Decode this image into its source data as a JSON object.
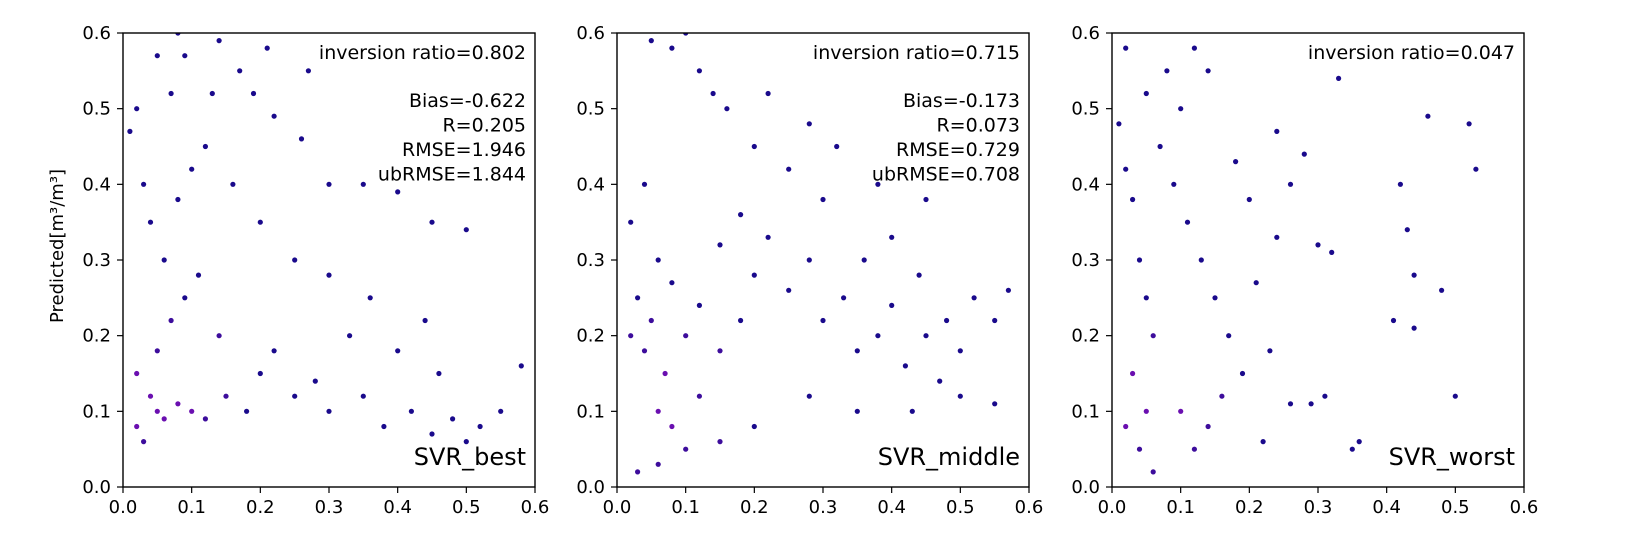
{
  "chart_data": [
    {
      "type": "scatter",
      "model": "SVR_best",
      "ylabel": "Predicted[m³/m³]",
      "xlim": [
        0,
        0.6
      ],
      "ylim": [
        0,
        0.6
      ],
      "xticks": [
        "0.0",
        "0.1",
        "0.2",
        "0.3",
        "0.4",
        "0.5",
        "0.6"
      ],
      "yticks": [
        "0.0",
        "0.1",
        "0.2",
        "0.3",
        "0.4",
        "0.5",
        "0.6"
      ],
      "stats": [
        "inversion ratio=0.802",
        "Bias=-0.622",
        "R=0.205",
        "RMSE=1.946",
        "ubRMSE=1.844"
      ],
      "points": [
        [
          0.02,
          0.08
        ],
        [
          0.03,
          0.06
        ],
        [
          0.05,
          0.1
        ],
        [
          0.04,
          0.12
        ],
        [
          0.06,
          0.09
        ],
        [
          0.08,
          0.11
        ],
        [
          0.1,
          0.1
        ],
        [
          0.12,
          0.09
        ],
        [
          0.15,
          0.12
        ],
        [
          0.18,
          0.1
        ],
        [
          0.02,
          0.15
        ],
        [
          0.05,
          0.18
        ],
        [
          0.07,
          0.22
        ],
        [
          0.09,
          0.25
        ],
        [
          0.11,
          0.28
        ],
        [
          0.06,
          0.3
        ],
        [
          0.04,
          0.35
        ],
        [
          0.08,
          0.38
        ],
        [
          0.1,
          0.42
        ],
        [
          0.14,
          0.2
        ],
        [
          0.2,
          0.15
        ],
        [
          0.22,
          0.18
        ],
        [
          0.25,
          0.12
        ],
        [
          0.28,
          0.14
        ],
        [
          0.3,
          0.1
        ],
        [
          0.35,
          0.12
        ],
        [
          0.38,
          0.08
        ],
        [
          0.42,
          0.1
        ],
        [
          0.45,
          0.07
        ],
        [
          0.48,
          0.09
        ],
        [
          0.5,
          0.06
        ],
        [
          0.52,
          0.08
        ],
        [
          0.55,
          0.1
        ],
        [
          0.58,
          0.16
        ],
        [
          0.33,
          0.2
        ],
        [
          0.36,
          0.25
        ],
        [
          0.4,
          0.18
        ],
        [
          0.44,
          0.22
        ],
        [
          0.46,
          0.15
        ],
        [
          0.3,
          0.28
        ],
        [
          0.25,
          0.3
        ],
        [
          0.2,
          0.35
        ],
        [
          0.16,
          0.4
        ],
        [
          0.12,
          0.45
        ],
        [
          0.07,
          0.52
        ],
        [
          0.09,
          0.57
        ],
        [
          0.14,
          0.59
        ],
        [
          0.22,
          0.49
        ],
        [
          0.27,
          0.55
        ],
        [
          0.21,
          0.58
        ],
        [
          0.26,
          0.46
        ],
        [
          0.3,
          0.4
        ],
        [
          0.35,
          0.4
        ],
        [
          0.4,
          0.39
        ],
        [
          0.45,
          0.35
        ],
        [
          0.5,
          0.34
        ],
        [
          0.01,
          0.47
        ],
        [
          0.02,
          0.5
        ],
        [
          0.03,
          0.4
        ],
        [
          0.05,
          0.57
        ],
        [
          0.08,
          0.6
        ],
        [
          0.13,
          0.52
        ],
        [
          0.17,
          0.55
        ],
        [
          0.19,
          0.52
        ]
      ]
    },
    {
      "type": "scatter",
      "model": "SVR_middle",
      "xlim": [
        0,
        0.6
      ],
      "ylim": [
        0,
        0.6
      ],
      "xticks": [
        "0.0",
        "0.1",
        "0.2",
        "0.3",
        "0.4",
        "0.5",
        "0.6"
      ],
      "yticks": [
        "0.0",
        "0.1",
        "0.2",
        "0.3",
        "0.4",
        "0.5",
        "0.6"
      ],
      "stats": [
        "inversion ratio=0.715",
        "Bias=-0.173",
        "R=0.073",
        "RMSE=0.729",
        "ubRMSE=0.708"
      ],
      "points": [
        [
          0.02,
          0.2
        ],
        [
          0.03,
          0.25
        ],
        [
          0.04,
          0.18
        ],
        [
          0.05,
          0.22
        ],
        [
          0.06,
          0.3
        ],
        [
          0.07,
          0.15
        ],
        [
          0.08,
          0.27
        ],
        [
          0.1,
          0.2
        ],
        [
          0.12,
          0.24
        ],
        [
          0.15,
          0.18
        ],
        [
          0.18,
          0.22
        ],
        [
          0.2,
          0.28
        ],
        [
          0.02,
          0.35
        ],
        [
          0.04,
          0.4
        ],
        [
          0.06,
          0.1
        ],
        [
          0.08,
          0.08
        ],
        [
          0.1,
          0.05
        ],
        [
          0.12,
          0.12
        ],
        [
          0.15,
          0.32
        ],
        [
          0.18,
          0.36
        ],
        [
          0.22,
          0.33
        ],
        [
          0.25,
          0.26
        ],
        [
          0.28,
          0.3
        ],
        [
          0.3,
          0.22
        ],
        [
          0.33,
          0.25
        ],
        [
          0.35,
          0.18
        ],
        [
          0.38,
          0.2
        ],
        [
          0.4,
          0.24
        ],
        [
          0.42,
          0.16
        ],
        [
          0.45,
          0.2
        ],
        [
          0.48,
          0.22
        ],
        [
          0.5,
          0.18
        ],
        [
          0.52,
          0.25
        ],
        [
          0.55,
          0.22
        ],
        [
          0.57,
          0.26
        ],
        [
          0.36,
          0.3
        ],
        [
          0.4,
          0.33
        ],
        [
          0.44,
          0.28
        ],
        [
          0.3,
          0.38
        ],
        [
          0.25,
          0.42
        ],
        [
          0.2,
          0.45
        ],
        [
          0.16,
          0.5
        ],
        [
          0.12,
          0.55
        ],
        [
          0.08,
          0.58
        ],
        [
          0.05,
          0.59
        ],
        [
          0.1,
          0.6
        ],
        [
          0.14,
          0.52
        ],
        [
          0.22,
          0.52
        ],
        [
          0.28,
          0.48
        ],
        [
          0.32,
          0.45
        ],
        [
          0.38,
          0.4
        ],
        [
          0.45,
          0.38
        ],
        [
          0.5,
          0.12
        ],
        [
          0.55,
          0.11
        ],
        [
          0.47,
          0.14
        ],
        [
          0.43,
          0.1
        ],
        [
          0.35,
          0.1
        ],
        [
          0.28,
          0.12
        ],
        [
          0.2,
          0.08
        ],
        [
          0.15,
          0.06
        ],
        [
          0.03,
          0.02
        ],
        [
          0.06,
          0.03
        ]
      ]
    },
    {
      "type": "scatter",
      "model": "SVR_worst",
      "xlim": [
        0,
        0.6
      ],
      "ylim": [
        0,
        0.6
      ],
      "xticks": [
        "0.0",
        "0.1",
        "0.2",
        "0.3",
        "0.4",
        "0.5",
        "0.6"
      ],
      "yticks": [
        "0.0",
        "0.1",
        "0.2",
        "0.3",
        "0.4",
        "0.5",
        "0.6"
      ],
      "stats": [
        "inversion ratio=0.047"
      ],
      "points": [
        [
          0.01,
          0.48
        ],
        [
          0.02,
          0.42
        ],
        [
          0.03,
          0.38
        ],
        [
          0.04,
          0.3
        ],
        [
          0.05,
          0.25
        ],
        [
          0.06,
          0.2
        ],
        [
          0.03,
          0.15
        ],
        [
          0.05,
          0.1
        ],
        [
          0.02,
          0.08
        ],
        [
          0.04,
          0.05
        ],
        [
          0.06,
          0.02
        ],
        [
          0.08,
          0.55
        ],
        [
          0.1,
          0.5
        ],
        [
          0.12,
          0.58
        ],
        [
          0.14,
          0.55
        ],
        [
          0.02,
          0.58
        ],
        [
          0.05,
          0.52
        ],
        [
          0.07,
          0.45
        ],
        [
          0.09,
          0.4
        ],
        [
          0.11,
          0.35
        ],
        [
          0.13,
          0.3
        ],
        [
          0.15,
          0.25
        ],
        [
          0.17,
          0.2
        ],
        [
          0.19,
          0.15
        ],
        [
          0.1,
          0.1
        ],
        [
          0.12,
          0.05
        ],
        [
          0.14,
          0.08
        ],
        [
          0.16,
          0.12
        ],
        [
          0.21,
          0.27
        ],
        [
          0.23,
          0.18
        ],
        [
          0.24,
          0.33
        ],
        [
          0.26,
          0.11
        ],
        [
          0.28,
          0.44
        ],
        [
          0.3,
          0.32
        ],
        [
          0.32,
          0.31
        ],
        [
          0.33,
          0.54
        ],
        [
          0.35,
          0.05
        ],
        [
          0.36,
          0.06
        ],
        [
          0.41,
          0.22
        ],
        [
          0.42,
          0.4
        ],
        [
          0.43,
          0.34
        ],
        [
          0.44,
          0.28
        ],
        [
          0.46,
          0.49
        ],
        [
          0.48,
          0.26
        ],
        [
          0.5,
          0.12
        ],
        [
          0.52,
          0.48
        ],
        [
          0.53,
          0.42
        ],
        [
          0.44,
          0.21
        ],
        [
          0.24,
          0.47
        ],
        [
          0.18,
          0.43
        ],
        [
          0.2,
          0.38
        ],
        [
          0.22,
          0.06
        ],
        [
          0.29,
          0.11
        ],
        [
          0.31,
          0.12
        ],
        [
          0.26,
          0.4
        ]
      ]
    }
  ]
}
